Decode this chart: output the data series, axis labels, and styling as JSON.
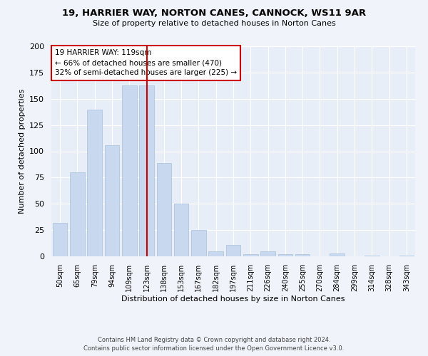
{
  "title": "19, HARRIER WAY, NORTON CANES, CANNOCK, WS11 9AR",
  "subtitle": "Size of property relative to detached houses in Norton Canes",
  "xlabel": "Distribution of detached houses by size in Norton Canes",
  "ylabel": "Number of detached properties",
  "categories": [
    "50sqm",
    "65sqm",
    "79sqm",
    "94sqm",
    "109sqm",
    "123sqm",
    "138sqm",
    "153sqm",
    "167sqm",
    "182sqm",
    "197sqm",
    "211sqm",
    "226sqm",
    "240sqm",
    "255sqm",
    "270sqm",
    "284sqm",
    "299sqm",
    "314sqm",
    "328sqm",
    "343sqm"
  ],
  "values": [
    32,
    80,
    140,
    106,
    163,
    163,
    89,
    50,
    25,
    5,
    11,
    2,
    5,
    2,
    2,
    0,
    3,
    0,
    1,
    0,
    1
  ],
  "bar_color": "#c8d8ee",
  "bar_edge_color": "#a8c0dc",
  "highlight_index": 5,
  "highlight_color": "#cc0000",
  "annotation_title": "19 HARRIER WAY: 119sqm",
  "annotation_line1": "← 66% of detached houses are smaller (470)",
  "annotation_line2": "32% of semi-detached houses are larger (225) →",
  "annotation_box_color": "#cc0000",
  "footer1": "Contains HM Land Registry data © Crown copyright and database right 2024.",
  "footer2": "Contains public sector information licensed under the Open Government Licence v3.0.",
  "ylim": [
    0,
    200
  ],
  "bg_color": "#f0f4fa",
  "plot_bg_color": "#e8eef8"
}
